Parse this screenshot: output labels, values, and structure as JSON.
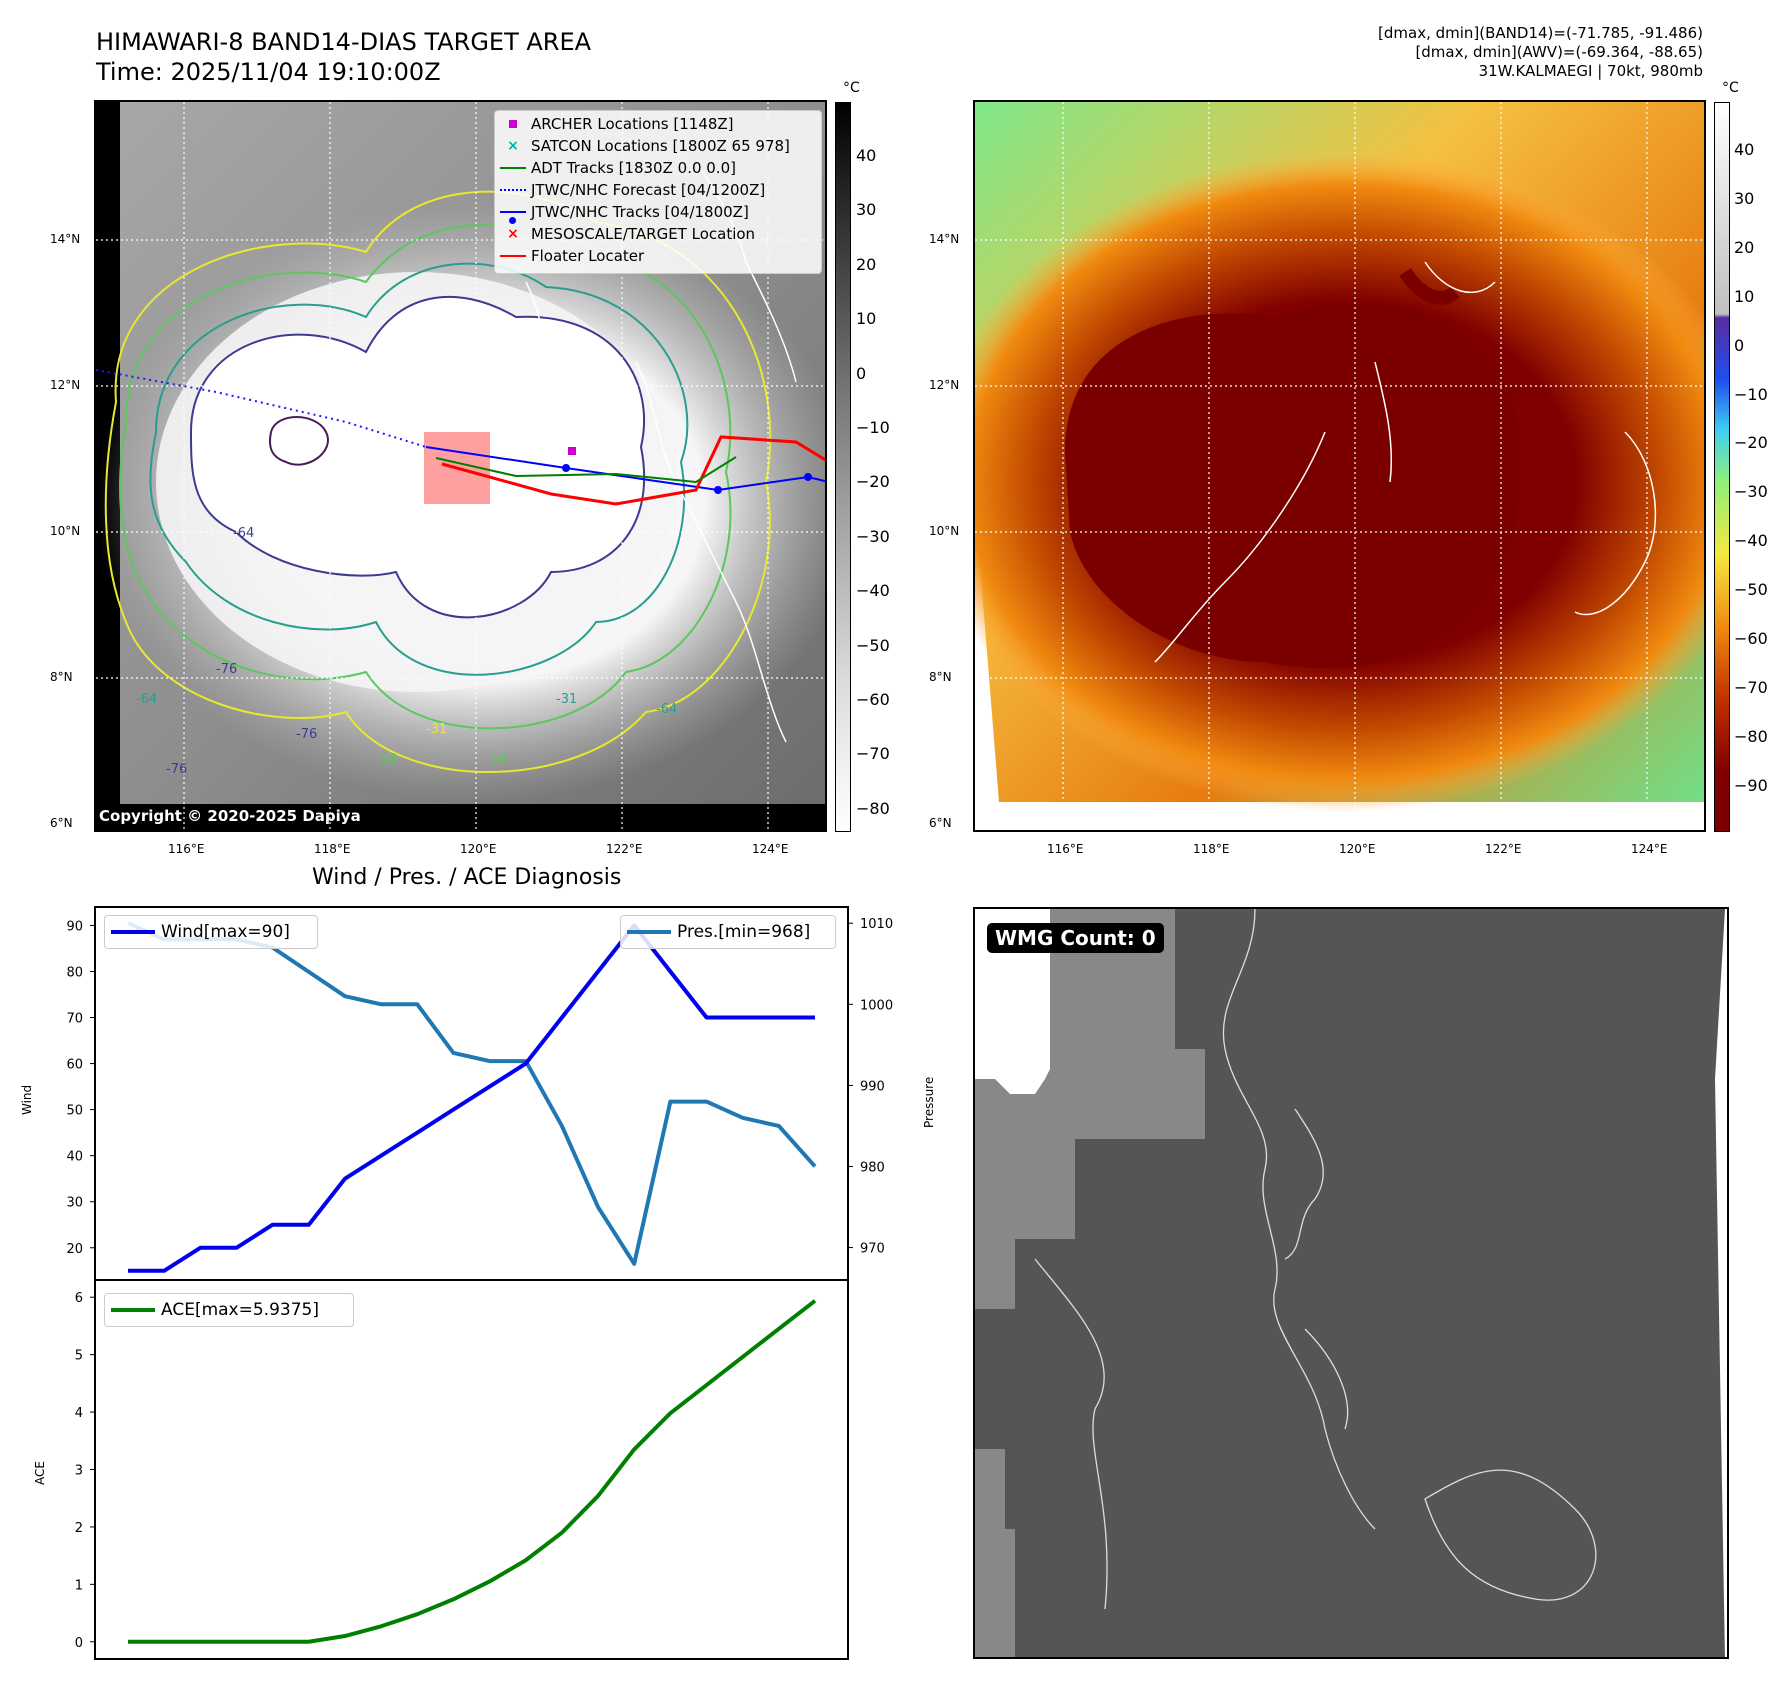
{
  "top_left": {
    "title_line1": "HIMAWARI-8 BAND14-DIAS TARGET AREA",
    "title_line2": "Time: 2025/11/04 19:10:00Z",
    "copyright": "Copyright © 2020-2025 Dapiya",
    "colorbar_unit": "°C",
    "colorbar_ticks": [
      "40",
      "30",
      "20",
      "10",
      "0",
      "−10",
      "−20",
      "−30",
      "−40",
      "−50",
      "−60",
      "−70",
      "−80"
    ],
    "lat_labels": [
      "14°N",
      "12°N",
      "10°N",
      "8°N",
      "6°N"
    ],
    "lon_labels": [
      "116°E",
      "118°E",
      "120°E",
      "122°E",
      "124°E"
    ],
    "contour_labels": [
      "-31",
      "-64",
      "-76",
      "-54",
      "-31",
      "-64",
      "-76",
      "-64",
      "-76",
      "-54"
    ],
    "legend": [
      {
        "label": "ARCHER Locations [1148Z]",
        "symbol": "square",
        "color": "#cc00cc"
      },
      {
        "label": "SATCON Locations [1800Z 65 978]",
        "symbol": "x",
        "color": "#00b3b3"
      },
      {
        "label": "ADT Tracks [1830Z 0.0 0.0]",
        "symbol": "line",
        "color": "#008000"
      },
      {
        "label": "JTWC/NHC Forecast [04/1200Z]",
        "symbol": "dotted",
        "color": "#0000ff"
      },
      {
        "label": "JTWC/NHC Tracks [04/1800Z]",
        "symbol": "dotline",
        "color": "#0000ff"
      },
      {
        "label": "MESOSCALE/TARGET Location",
        "symbol": "x",
        "color": "#ff0000"
      },
      {
        "label": "Floater Locater",
        "symbol": "line",
        "color": "#ff0000"
      }
    ]
  },
  "top_right": {
    "info_line1": "[dmax, dmin](BAND14)=(-71.785, -91.486)",
    "info_line2": "[dmax, dmin](AWV)=(-69.364, -88.65)",
    "info_line3": "31W.KALMAEGI | 70kt, 980mb",
    "colorbar_unit": "°C",
    "colorbar_ticks": [
      "40",
      "30",
      "20",
      "10",
      "0",
      "−10",
      "−20",
      "−30",
      "−40",
      "−50",
      "−60",
      "−70",
      "−80",
      "−90"
    ],
    "lat_labels": [
      "14°N",
      "12°N",
      "10°N",
      "8°N",
      "6°N"
    ],
    "lon_labels": [
      "116°E",
      "118°E",
      "120°E",
      "122°E",
      "124°E"
    ]
  },
  "bottom_right": {
    "badge": "WMG Count: 0"
  },
  "chart_data": [
    {
      "type": "line",
      "title": "Wind / Pres. / ACE Diagnosis",
      "ylabel": "Wind",
      "ylabel2": "Pressure",
      "x": [
        0,
        1,
        2,
        3,
        4,
        5,
        6,
        7,
        8,
        9,
        10,
        11,
        12,
        13,
        14,
        15,
        16,
        17,
        18,
        19
      ],
      "ylim": [
        13,
        94
      ],
      "ylim2": [
        966,
        1012
      ],
      "yticks": [
        20,
        30,
        40,
        50,
        60,
        70,
        80,
        90
      ],
      "yticks2": [
        970,
        980,
        990,
        1000,
        1010
      ],
      "series": [
        {
          "name": "Wind[max=90]",
          "axis": "left",
          "color": "#0000ee",
          "values": [
            15,
            15,
            20,
            20,
            25,
            25,
            35,
            40,
            45,
            50,
            55,
            60,
            70,
            80,
            90,
            80,
            70,
            70,
            70,
            70
          ]
        },
        {
          "name": "Pres.[min=968]",
          "axis": "right",
          "color": "#1f77b4",
          "values": [
            1010,
            1008,
            1008,
            1008,
            1007,
            1004,
            1001,
            1000,
            1000,
            994,
            993,
            993,
            985,
            975,
            968,
            988,
            988,
            986,
            985,
            980
          ]
        }
      ]
    },
    {
      "type": "line",
      "ylabel": "ACE",
      "x": [
        0,
        1,
        2,
        3,
        4,
        5,
        6,
        7,
        8,
        9,
        10,
        11,
        12,
        13,
        14,
        15,
        16,
        17,
        18,
        19
      ],
      "ylim": [
        -0.3,
        6.3
      ],
      "yticks": [
        0,
        1,
        2,
        3,
        4,
        5,
        6
      ],
      "series": [
        {
          "name": "ACE[max=5.9375]",
          "color": "#008000",
          "values": [
            0,
            0,
            0,
            0,
            0,
            0,
            0.1,
            0.27,
            0.48,
            0.74,
            1.05,
            1.42,
            1.9,
            2.54,
            3.35,
            3.98,
            4.47,
            4.96,
            5.45,
            5.9375
          ]
        }
      ]
    }
  ]
}
